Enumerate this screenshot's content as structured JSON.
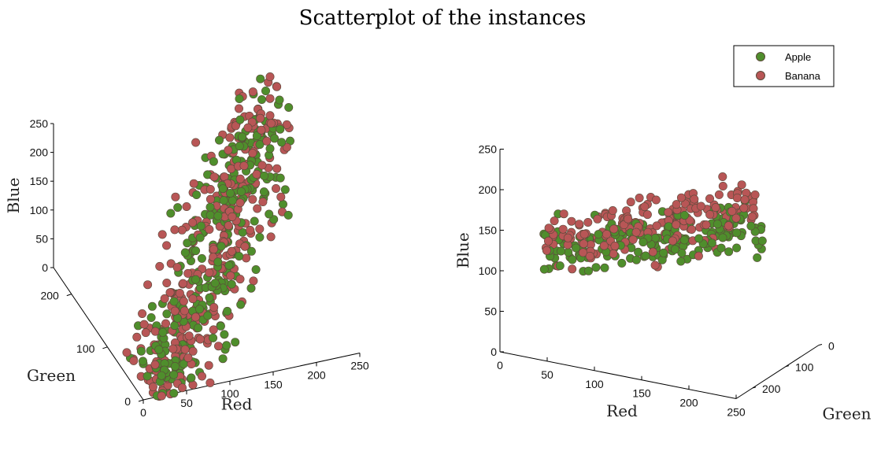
{
  "colors": {
    "apple": "#4f8e2c",
    "banana": "#b85656",
    "point_edge": "#5a4a3a",
    "axis": "#000000"
  },
  "chart_data": [
    {
      "type": "scatter",
      "title": "Scatterplot of the instances",
      "view": "left",
      "xlabel": "Red",
      "ylabel": "Green",
      "zlabel": "Blue",
      "xlim": [
        0,
        250
      ],
      "ylim": [
        0,
        250
      ],
      "zlim": [
        0,
        250
      ],
      "x_ticks": [
        0,
        50,
        100,
        150,
        200,
        250
      ],
      "y_ticks": [
        0,
        100,
        200
      ],
      "z_ticks": [
        0,
        50,
        100,
        150,
        200,
        250
      ],
      "series": [
        {
          "name": "Apple",
          "count": 300
        },
        {
          "name": "Banana",
          "count": 300
        }
      ]
    },
    {
      "type": "scatter",
      "view": "right",
      "xlabel": "Red",
      "ylabel": "Green",
      "zlabel": "Blue",
      "xlim": [
        0,
        250
      ],
      "ylim": [
        0,
        250
      ],
      "zlim": [
        0,
        250
      ],
      "x_ticks": [
        0,
        50,
        100,
        150,
        200,
        250
      ],
      "y_ticks": [
        0,
        100,
        200
      ],
      "z_ticks": [
        0,
        50,
        100,
        150,
        200,
        250
      ],
      "series": [
        {
          "name": "Apple",
          "count": 200
        },
        {
          "name": "Banana",
          "count": 200
        }
      ]
    }
  ],
  "legend": {
    "placement": "top-right",
    "items": [
      {
        "label": "Apple",
        "color_key": "apple"
      },
      {
        "label": "Banana",
        "color_key": "banana"
      }
    ]
  }
}
